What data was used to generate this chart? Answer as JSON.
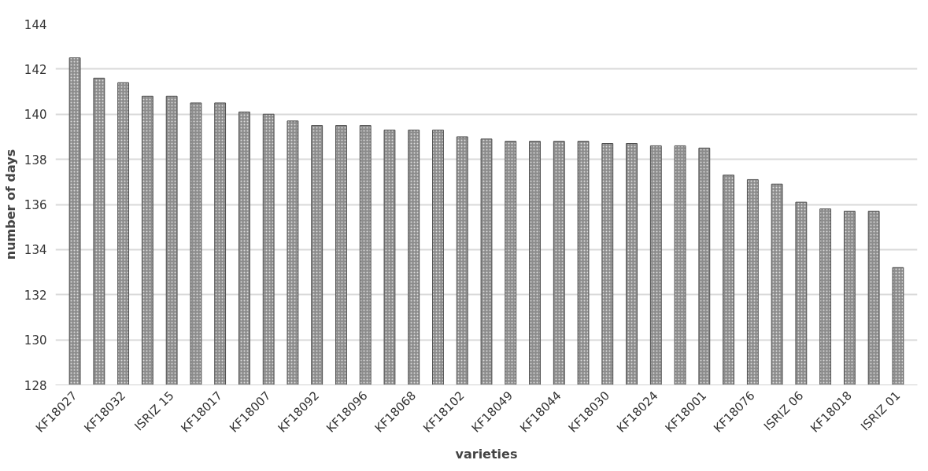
{
  "chart_data": {
    "type": "bar",
    "xlabel": "varieties",
    "ylabel": "number of days",
    "categories": [
      "KF18027",
      null,
      "KF18032",
      null,
      "ISRIZ 15",
      null,
      "KF18017",
      null,
      "KF18007",
      null,
      "KF18092",
      null,
      "KF18096",
      null,
      "KF18068",
      null,
      "KF18102",
      null,
      "KF18049",
      null,
      "KF18044",
      null,
      "KF18030",
      null,
      "KF18024",
      null,
      "KF18001",
      null,
      "KF18076",
      null,
      "ISRIZ 06",
      null,
      "KF18018",
      null,
      "ISRIZ 01"
    ],
    "values": [
      142.5,
      141.6,
      141.4,
      140.8,
      140.8,
      140.5,
      140.5,
      140.1,
      140.0,
      139.7,
      139.5,
      139.5,
      139.5,
      139.3,
      139.3,
      139.3,
      139.0,
      138.9,
      138.8,
      138.8,
      138.8,
      138.8,
      138.7,
      138.7,
      138.6,
      138.6,
      138.5,
      137.3,
      137.1,
      136.9,
      136.1,
      135.8,
      135.7,
      135.7,
      133.2
    ],
    "color": "#8c8c8c",
    "ylim": [
      128,
      144
    ],
    "yticks": [
      128,
      130,
      132,
      134,
      136,
      138,
      140,
      142,
      144
    ],
    "grid": "y"
  }
}
